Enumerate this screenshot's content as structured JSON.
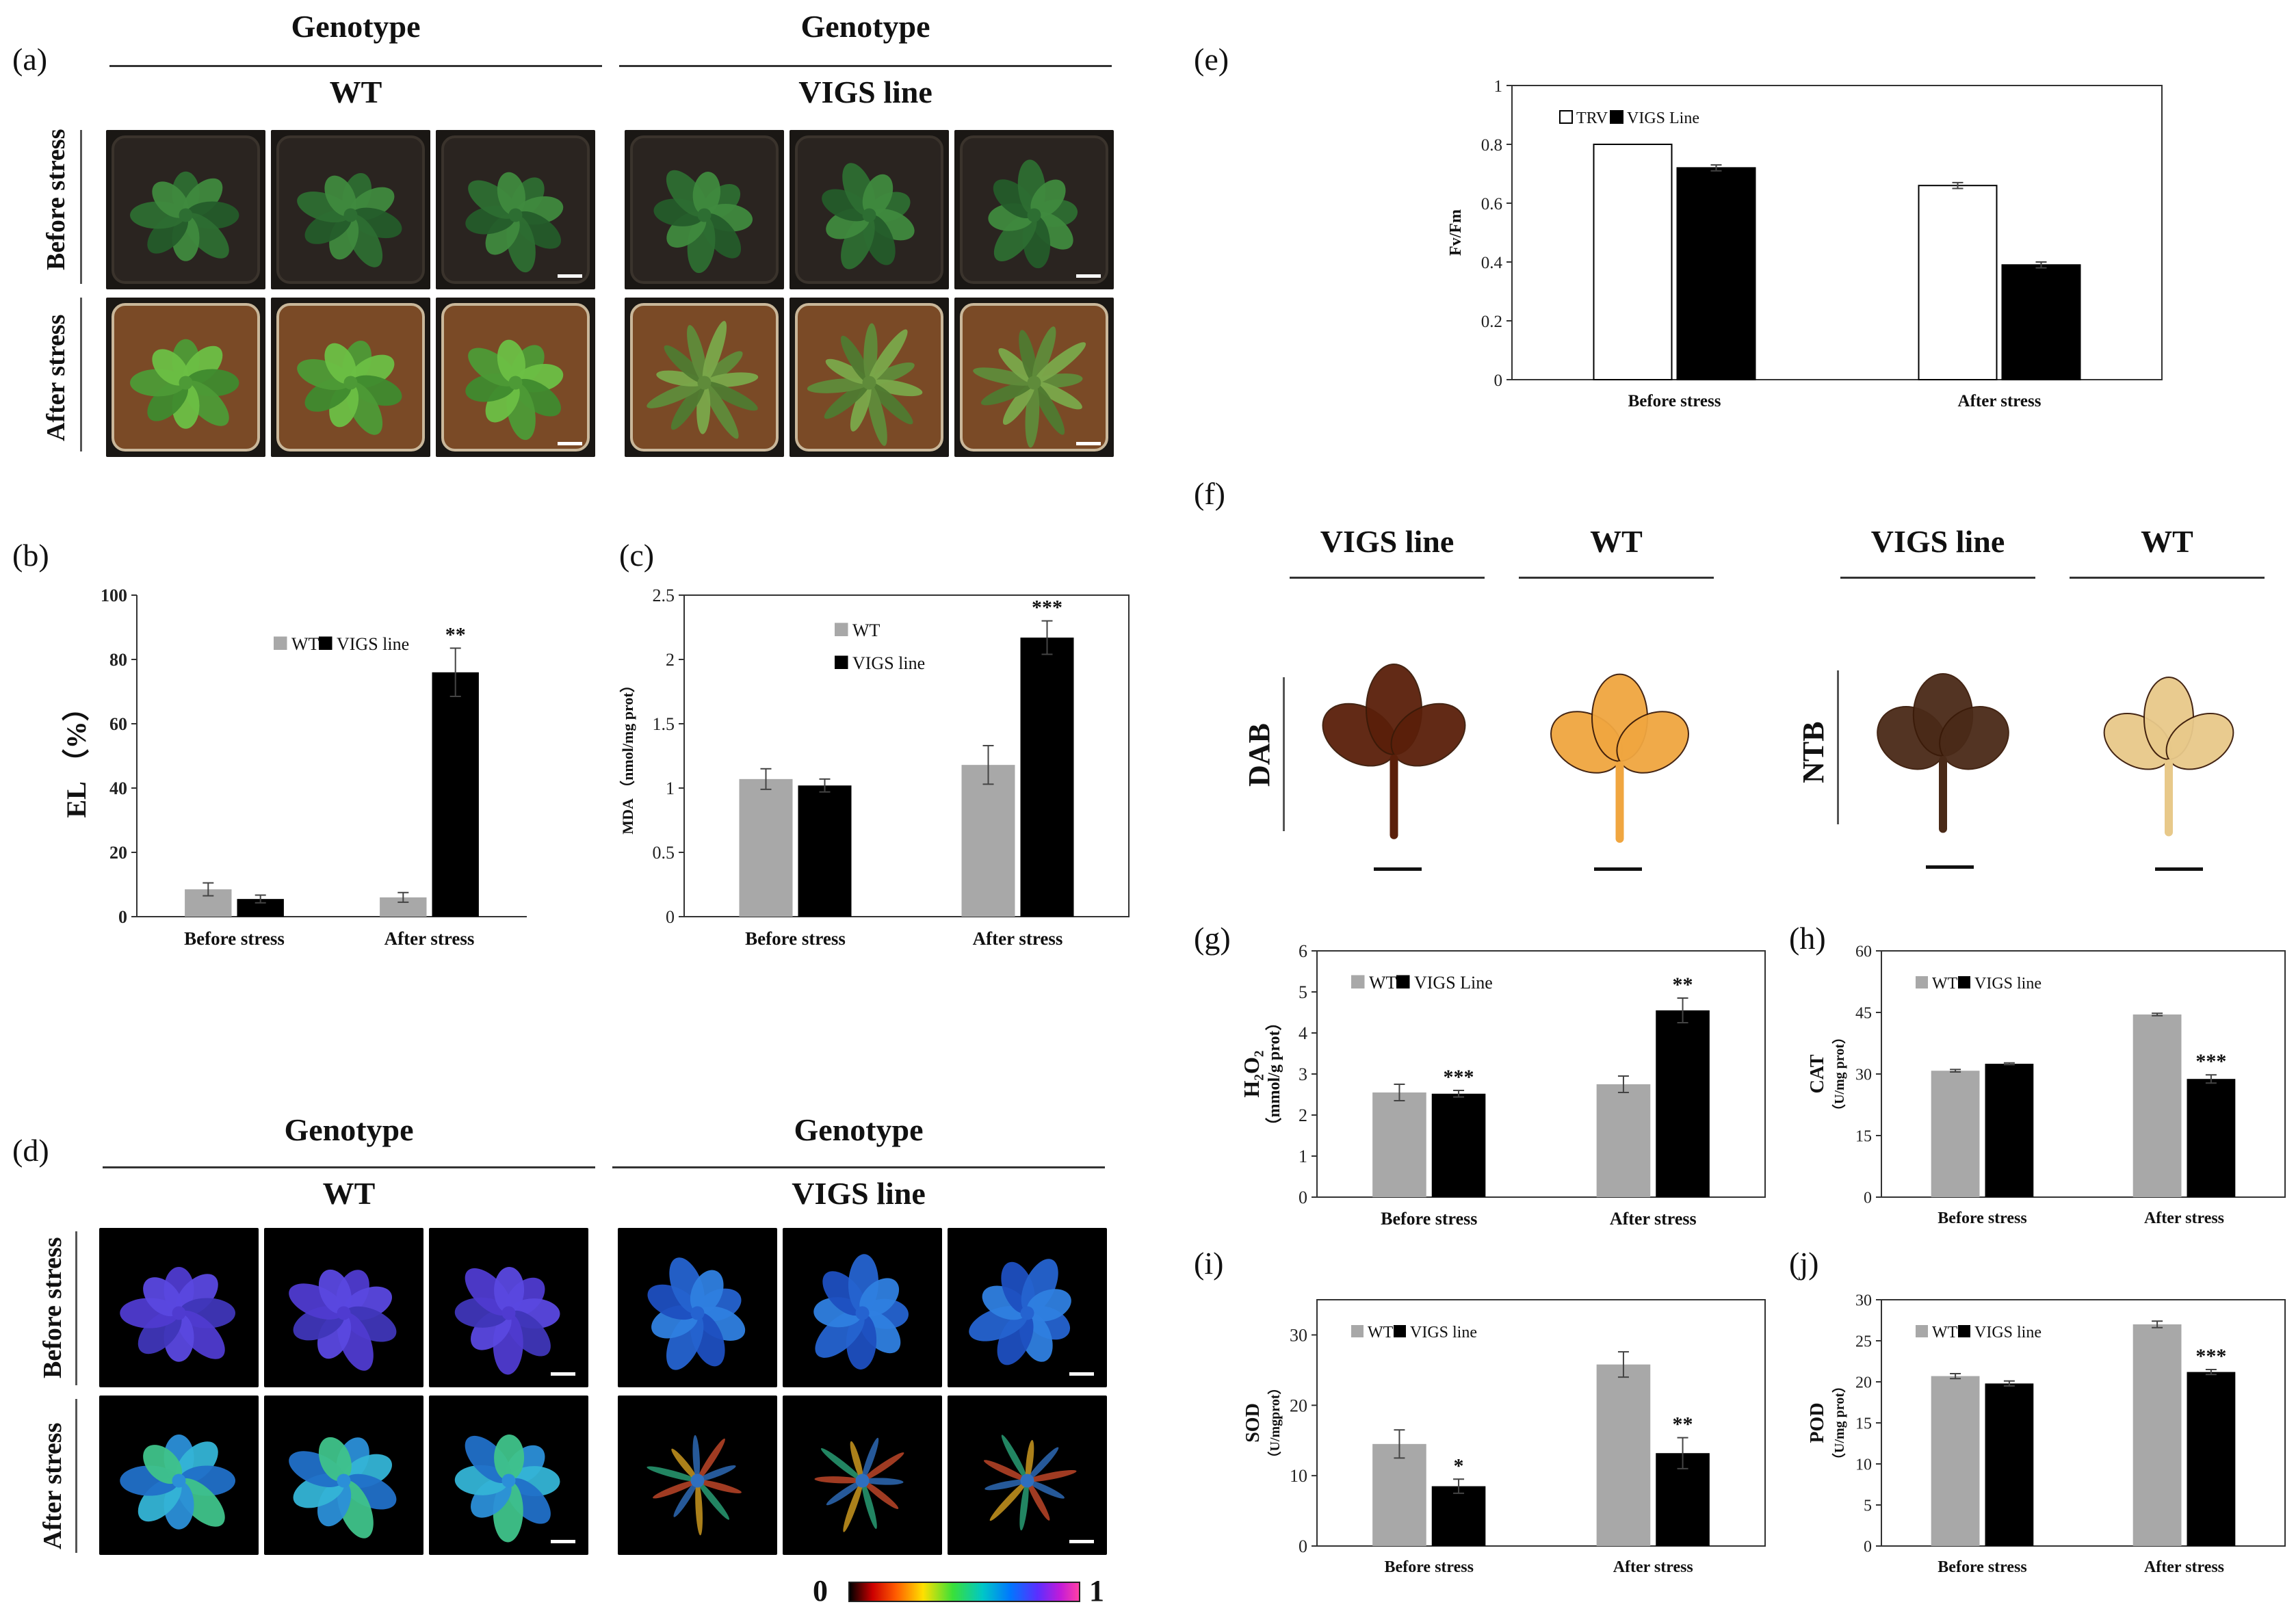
{
  "panels": {
    "a": "(a)",
    "b": "(b)",
    "c": "(c)",
    "d": "(d)",
    "e": "(e)",
    "f": "(f)",
    "g": "(g)",
    "h": "(h)",
    "i": "(i)",
    "j": "(j)"
  },
  "panel_a": {
    "left": {
      "top_header": "Genotype",
      "sub_header": "WT"
    },
    "right": {
      "top_header": "Genotype",
      "sub_header": "VIGS line"
    },
    "row_labels": [
      "Before stress",
      "After stress"
    ]
  },
  "panel_d": {
    "left": {
      "top_header": "Genotype",
      "sub_header": "WT"
    },
    "right": {
      "top_header": "Genotype",
      "sub_header": "VIGS line"
    },
    "row_labels": [
      "Before stress",
      "After stress"
    ],
    "colorbar": {
      "min_label": "0",
      "max_label": "1"
    }
  },
  "panel_f": {
    "left_headers": [
      "VIGS line",
      "WT"
    ],
    "right_headers": [
      "VIGS line",
      "WT"
    ],
    "stains": [
      "DAB",
      "NTB"
    ],
    "leaf_colors": {
      "dab_vigs": "#5a1f0a",
      "dab_wt": "#f0a640",
      "ntb_vigs": "#4a2a18",
      "ntb_wt": "#e8c98a"
    }
  },
  "colors": {
    "wt_gray": "#a8a8a8",
    "vigs_black": "#000000",
    "trv_white": "#ffffff"
  },
  "chart_data": [
    {
      "id": "b",
      "type": "bar",
      "categories": [
        "Before stress",
        "After stress"
      ],
      "series": [
        {
          "name": "WT",
          "values": [
            8.5,
            6.0
          ],
          "errors": [
            2.0,
            1.5
          ]
        },
        {
          "name": "VIGS line",
          "values": [
            5.5,
            76.0
          ],
          "errors": [
            1.2,
            7.5
          ]
        }
      ],
      "ylabel": "EL （%）",
      "ylim": [
        0,
        100
      ],
      "yticks": [
        0,
        20,
        40,
        60,
        80,
        100
      ],
      "annotations": [
        "",
        "**"
      ]
    },
    {
      "id": "c",
      "type": "bar",
      "categories": [
        "Before stress",
        "After stress"
      ],
      "series": [
        {
          "name": "WT",
          "values": [
            1.07,
            1.18
          ],
          "errors": [
            0.08,
            0.15
          ]
        },
        {
          "name": "VIGS line",
          "values": [
            1.02,
            2.17
          ],
          "errors": [
            0.05,
            0.13
          ]
        }
      ],
      "ylabel": "MDA （nmol/mg prot）",
      "ylim": [
        0,
        2.5
      ],
      "yticks": [
        "0",
        "0.5",
        "1",
        "1.5",
        "2",
        "2.5"
      ],
      "annotations": [
        "",
        "***"
      ]
    },
    {
      "id": "e",
      "type": "bar",
      "categories": [
        "Before stress",
        "After stress"
      ],
      "series": [
        {
          "name": "TRV",
          "values": [
            0.8,
            0.66
          ],
          "errors": [
            0.0,
            0.01
          ]
        },
        {
          "name": "VIGS Line",
          "values": [
            0.72,
            0.39
          ],
          "errors": [
            0.01,
            0.01
          ]
        }
      ],
      "ylabel": "Fv/Fm",
      "ylim": [
        0,
        1
      ],
      "yticks": [
        "0",
        "0.2",
        "0.4",
        "0.6",
        "0.8",
        "1"
      ],
      "annotations": [
        "",
        ""
      ]
    },
    {
      "id": "g",
      "type": "bar",
      "categories": [
        "Before stress",
        "After stress"
      ],
      "series": [
        {
          "name": "WT",
          "values": [
            2.55,
            2.75
          ],
          "errors": [
            0.2,
            0.2
          ]
        },
        {
          "name": "VIGS Line",
          "values": [
            2.52,
            4.55
          ],
          "errors": [
            0.08,
            0.3
          ]
        }
      ],
      "ylabel_main": "H₂O₂",
      "ylabel_unit": "（mmol/g prot）",
      "ylim": [
        0,
        6
      ],
      "yticks": [
        "0",
        "1",
        "2",
        "3",
        "4",
        "5",
        "6"
      ],
      "annotations": [
        "***",
        "**"
      ]
    },
    {
      "id": "h",
      "type": "bar",
      "categories": [
        "Before stress",
        "After stress"
      ],
      "series": [
        {
          "name": "WT",
          "values": [
            30.8,
            44.5
          ],
          "errors": [
            0.3,
            0.3
          ]
        },
        {
          "name": "VIGS line",
          "values": [
            32.5,
            28.8
          ],
          "errors": [
            0.2,
            1.0
          ]
        }
      ],
      "ylabel_main": "CAT",
      "ylabel_unit": "（U/mg prot）",
      "ylim": [
        0,
        60
      ],
      "yticks": [
        "0",
        "15",
        "30",
        "45",
        "60"
      ],
      "annotations": [
        "",
        "***"
      ]
    },
    {
      "id": "i",
      "type": "bar",
      "categories": [
        "Before stress",
        "After stress"
      ],
      "series": [
        {
          "name": "WT",
          "values": [
            14.5,
            25.8
          ],
          "errors": [
            2.0,
            1.8
          ]
        },
        {
          "name": "VIGS line",
          "values": [
            8.5,
            13.2
          ],
          "errors": [
            1.0,
            2.2
          ]
        }
      ],
      "ylabel_main": "SOD",
      "ylabel_unit": "（U/mgprot）",
      "ylim": [
        0,
        35
      ],
      "yticks": [
        "0",
        "10",
        "20",
        "30"
      ],
      "annotations": [
        "*",
        "**"
      ]
    },
    {
      "id": "j",
      "type": "bar",
      "categories": [
        "Before stress",
        "After stress"
      ],
      "series": [
        {
          "name": "WT",
          "values": [
            20.7,
            27.0
          ],
          "errors": [
            0.3,
            0.4
          ]
        },
        {
          "name": "VIGS line",
          "values": [
            19.8,
            21.2
          ],
          "errors": [
            0.3,
            0.3
          ]
        }
      ],
      "ylabel_main": "POD",
      "ylabel_unit": "（U/mg prot）",
      "ylim": [
        0,
        30
      ],
      "yticks": [
        "0",
        "5",
        "10",
        "15",
        "20",
        "25",
        "30"
      ],
      "annotations": [
        "",
        "***"
      ]
    }
  ]
}
